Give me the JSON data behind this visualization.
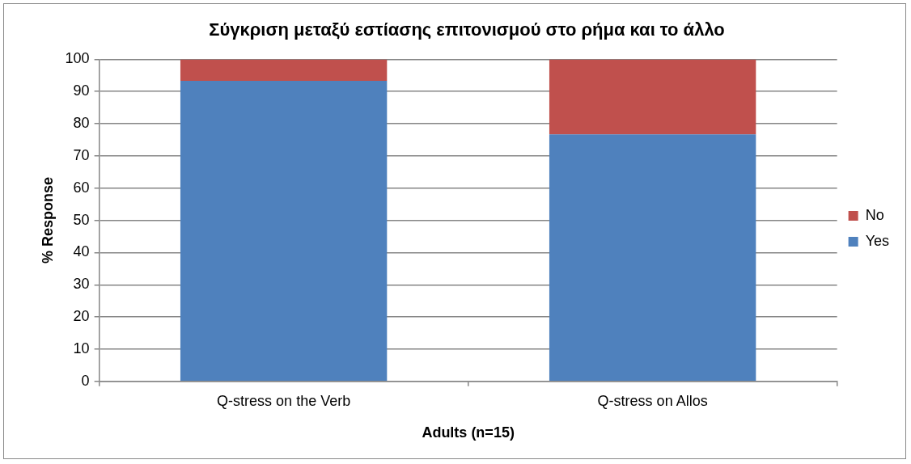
{
  "chart_data": {
    "type": "bar",
    "title": "Σύγκριση μεταξύ εστίασης επιτονισμού στο ρήμα και το άλλο",
    "xlabel": "Adults (n=15)",
    "ylabel": "% Response",
    "categories": [
      "Q-stress on the Verb",
      "Q-stress on Allos"
    ],
    "series": [
      {
        "name": "Yes",
        "color": "#4f81bd",
        "values": [
          93.3,
          76.7
        ]
      },
      {
        "name": "No",
        "color": "#c0504d",
        "values": [
          6.7,
          23.3
        ]
      }
    ],
    "stacked": true,
    "ylim": [
      0,
      100
    ],
    "yticks": [
      0,
      10,
      20,
      30,
      40,
      50,
      60,
      70,
      80,
      90,
      100
    ],
    "grid": "y",
    "legend": "right"
  }
}
